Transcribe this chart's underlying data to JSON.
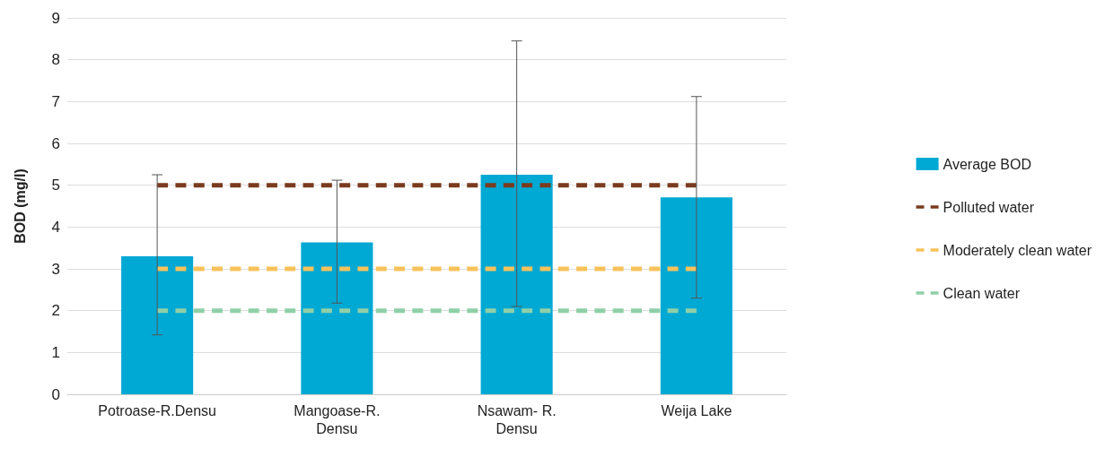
{
  "chart_data": {
    "type": "bar",
    "ylabel": "BOD (mg/l)",
    "categories": [
      "Potroase-R.Densu",
      "Mangoase-R.\nDensu",
      "Nsawam- R.\nDensu",
      "Weija Lake"
    ],
    "series": [
      {
        "name": "Average BOD",
        "color": "#00a9d4",
        "values": [
          3.3,
          3.63,
          5.25,
          4.71
        ],
        "errors": [
          [
            1.42,
            5.25
          ],
          [
            2.18,
            5.12
          ],
          [
            2.1,
            8.45
          ],
          [
            2.3,
            7.12
          ]
        ]
      },
      {
        "name": "Polluted water",
        "type": "line",
        "color": "#7a3b1e",
        "line_style": "dashed",
        "marker": "none",
        "values": [
          5,
          5,
          5,
          5
        ]
      },
      {
        "name": "Moderately clean water",
        "type": "line",
        "color": "#f7c25a",
        "line_style": "dashed",
        "marker": "none",
        "values": [
          3,
          3,
          3,
          3
        ]
      },
      {
        "name": "Clean water",
        "type": "line",
        "color": "#8fd0a8",
        "line_style": "dashed",
        "marker": "none",
        "values": [
          2,
          2,
          2,
          2
        ]
      }
    ],
    "ylim": [
      0,
      9
    ],
    "yticks": [
      0,
      1,
      2,
      3,
      4,
      5,
      6,
      7,
      8,
      9
    ],
    "grid": "y",
    "legend": "right"
  }
}
